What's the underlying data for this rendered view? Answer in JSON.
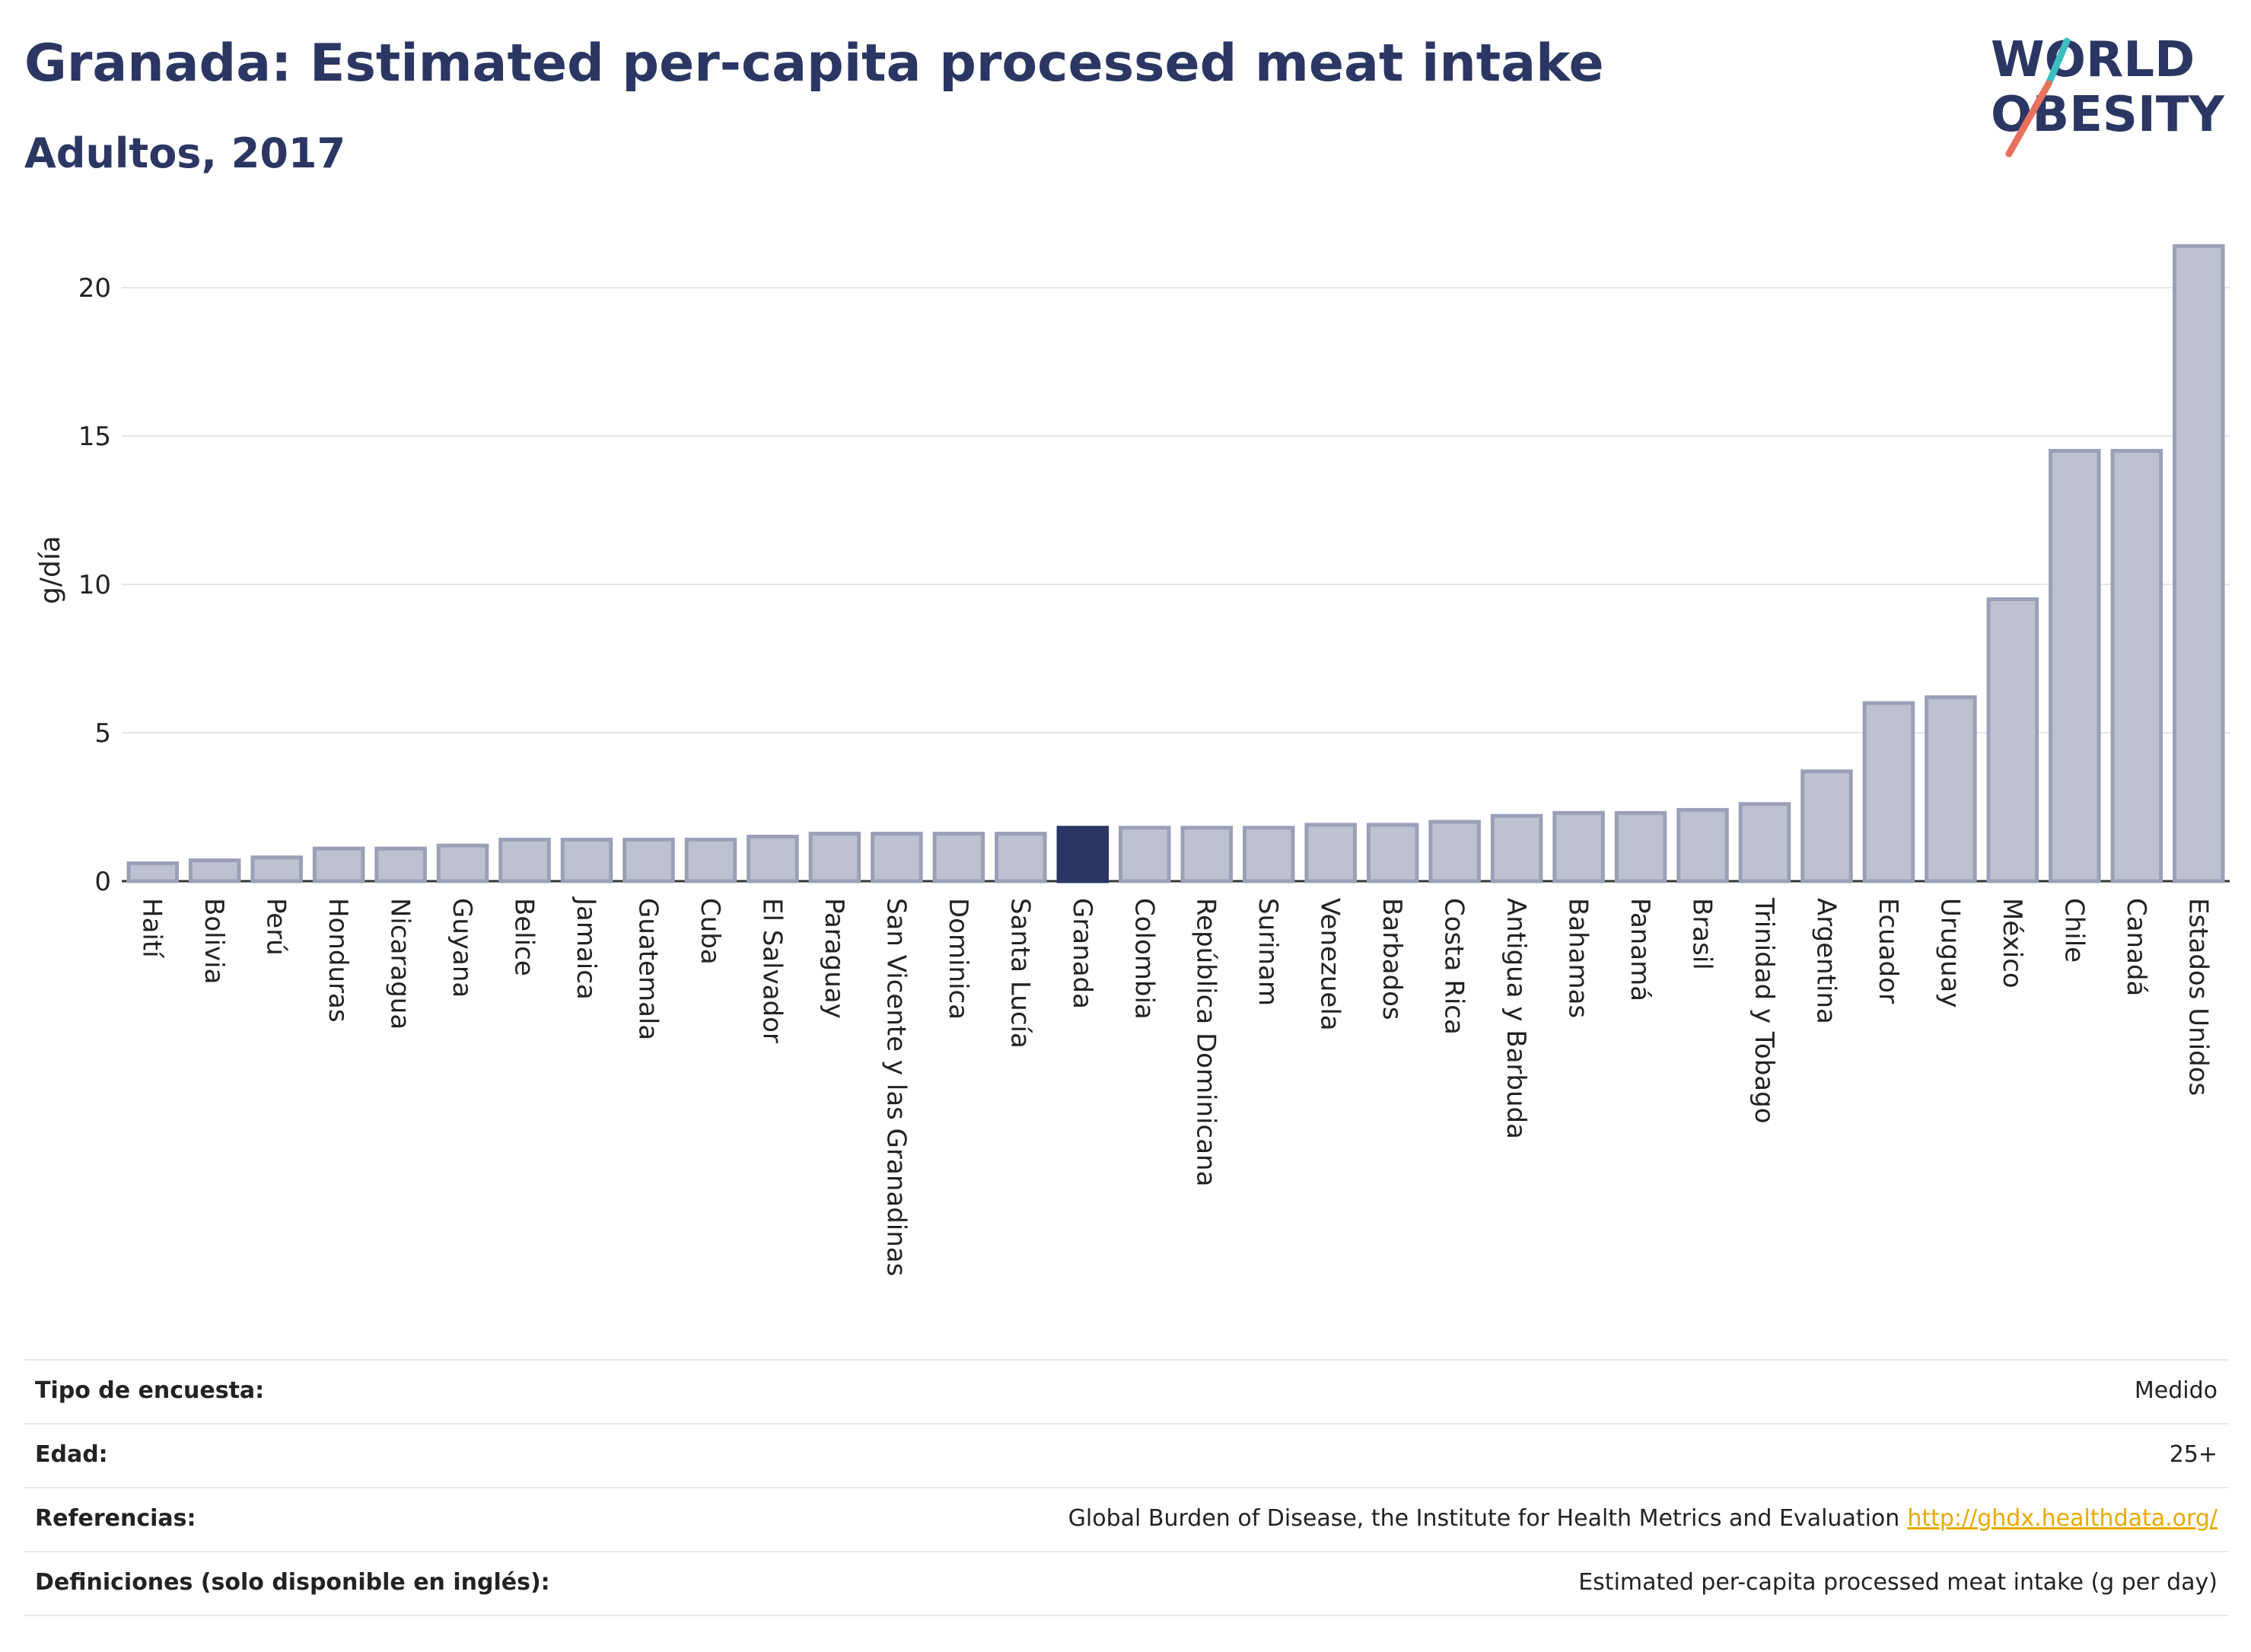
{
  "header": {
    "title": "Granada: Estimated per-capita processed meat intake",
    "subtitle": "Adultos, 2017"
  },
  "logo": {
    "line1": "WORLD",
    "line2": "OBESITY",
    "slash_colors": [
      "#3bbfc0",
      "#e8715d"
    ]
  },
  "colors": {
    "title": "#2b3663",
    "bar": "#bec1cf",
    "bar_border": "#9aa0b8",
    "highlight": "#2b3663"
  },
  "chart_data": {
    "type": "bar",
    "title": "",
    "xlabel": "",
    "ylabel": "g/día",
    "ylim": [
      0,
      22
    ],
    "yticks": [
      0,
      5,
      10,
      15,
      20
    ],
    "grid": true,
    "highlight": "Granada",
    "categories": [
      "Haití",
      "Bolivia",
      "Perú",
      "Honduras",
      "Nicaragua",
      "Guyana",
      "Belice",
      "Jamaica",
      "Guatemala",
      "Cuba",
      "El Salvador",
      "Paraguay",
      "San Vicente y las Granadinas",
      "Dominica",
      "Santa Lucía",
      "Granada",
      "Colombia",
      "República Dominicana",
      "Surinam",
      "Venezuela",
      "Barbados",
      "Costa Rica",
      "Antigua y Barbuda",
      "Bahamas",
      "Panamá",
      "Brasil",
      "Trinidad y Tobago",
      "Argentina",
      "Ecuador",
      "Uruguay",
      "México",
      "Chile",
      "Canadá",
      "Estados Unidos"
    ],
    "values": [
      0.6,
      0.7,
      0.8,
      1.1,
      1.1,
      1.2,
      1.4,
      1.4,
      1.4,
      1.4,
      1.5,
      1.6,
      1.6,
      1.6,
      1.6,
      1.8,
      1.8,
      1.8,
      1.8,
      1.9,
      1.9,
      2.0,
      2.2,
      2.3,
      2.3,
      2.4,
      2.6,
      3.7,
      6.0,
      6.2,
      9.5,
      14.5,
      14.5,
      21.4
    ]
  },
  "info": [
    {
      "label": "Tipo de encuesta:",
      "value": "Medido"
    },
    {
      "label": "Edad:",
      "value": "25+"
    },
    {
      "label": "Referencias:",
      "value": "Global Burden of Disease, the Institute for Health Metrics and Evaluation",
      "link": "http://ghdx.healthdata.org/"
    },
    {
      "label": "Definiciones (solo disponible en inglés):",
      "value": "Estimated per-capita processed meat intake (g per day)"
    }
  ]
}
